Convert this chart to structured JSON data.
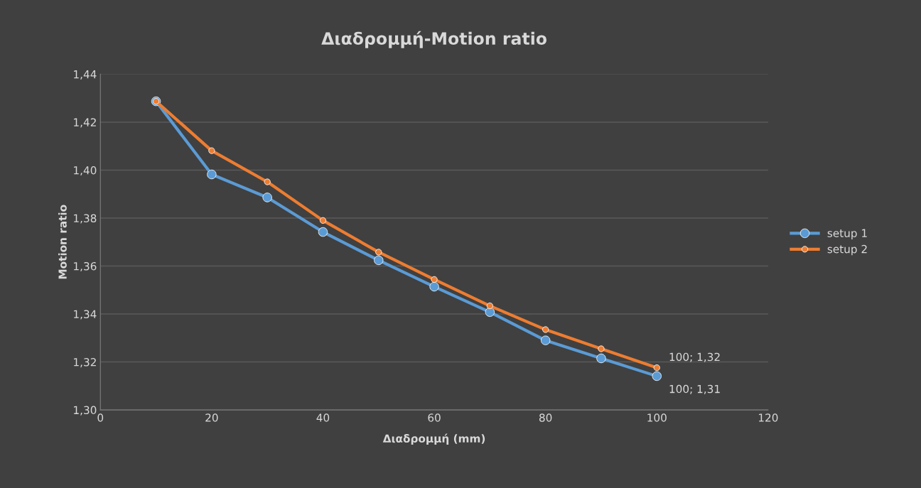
{
  "chart_data": {
    "type": "line",
    "title": "Διαδρομμή-Motion ratio",
    "xlabel": "Διαδρομμή (mm)",
    "ylabel": "Motion ratio",
    "x": [
      10,
      20,
      30,
      40,
      50,
      60,
      70,
      80,
      90,
      100
    ],
    "series": [
      {
        "name": "setup 1",
        "color": "#5b9bd5",
        "values": [
          1.4287,
          1.3982,
          1.3886,
          1.3742,
          1.3624,
          1.3514,
          1.3408,
          1.329,
          1.3215,
          1.3141
        ]
      },
      {
        "name": "setup 2",
        "color": "#ed7d31",
        "values": [
          1.4287,
          1.4081,
          1.3951,
          1.379,
          1.3658,
          1.3544,
          1.3434,
          1.3335,
          1.3255,
          1.3176
        ]
      }
    ],
    "xlim": [
      0,
      120
    ],
    "xticks": [
      0,
      20,
      40,
      60,
      80,
      100,
      120
    ],
    "ylim": [
      1.3,
      1.44
    ],
    "yticks": [
      {
        "value": 1.3,
        "label": "1,30"
      },
      {
        "value": 1.32,
        "label": "1,32"
      },
      {
        "value": 1.34,
        "label": "1,34"
      },
      {
        "value": 1.36,
        "label": "1,36"
      },
      {
        "value": 1.38,
        "label": "1,38"
      },
      {
        "value": 1.4,
        "label": "1,40"
      },
      {
        "value": 1.42,
        "label": "1,42"
      },
      {
        "value": 1.44,
        "label": "1,44"
      }
    ],
    "annotations": [
      {
        "text": "100; 1,31",
        "x": 100,
        "y": 1.3141
      },
      {
        "text": "100; 1,32",
        "x": 100,
        "y": 1.3176
      }
    ],
    "grid": "y",
    "legend": "right",
    "marker": "circle",
    "line_style": "solid"
  }
}
